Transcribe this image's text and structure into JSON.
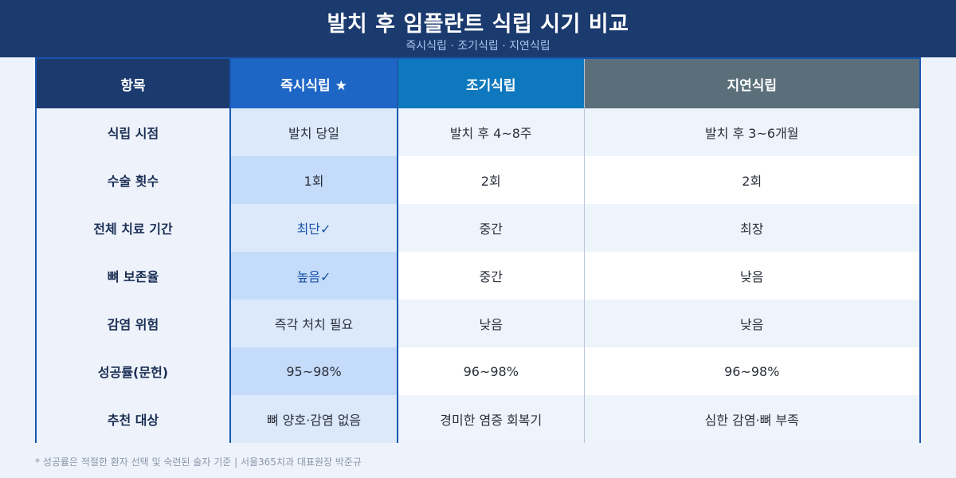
{
  "header": {
    "title": "발치 후 임플란트 식립 시기 비교",
    "subtitle": "즉시식립 · 조기식립 · 지연식립"
  },
  "table": {
    "headers": [
      "항목",
      "즉시식립 ★",
      "조기식립",
      "지연식립"
    ],
    "rows": [
      [
        "식립 시점",
        "발치 당일",
        "발치 후 4~8주",
        "발치 후 3~6개월"
      ],
      [
        "수술 횟수",
        "1회",
        "2회",
        "2회"
      ],
      [
        "전체 치료 기간",
        "최단✓",
        "중간",
        "최장"
      ],
      [
        "뼈 보존율",
        "높음✓",
        "중간",
        "낮음"
      ],
      [
        "감염 위험",
        "즉각 처치 필요",
        "낮음",
        "낮음"
      ],
      [
        "성공률(문헌)",
        "95~98%",
        "96~98%",
        "96~98%"
      ],
      [
        "추천 대상",
        "뼈 양호·감염 없음",
        "경미한 염증 회복기",
        "심한 감염·뼈 부족"
      ]
    ]
  },
  "colors": {
    "header_bg": "#1b3a6e",
    "immediate_header": "#1e66c6",
    "early_header": "#0d78bd",
    "delayed_header": "#5b6f7b",
    "highlight_text": "#1a52a8"
  },
  "footnote": "* 성공률은 적절한 환자 선택 및 숙련된 술자 기준  |  서울365치과 대표원장 박준규"
}
